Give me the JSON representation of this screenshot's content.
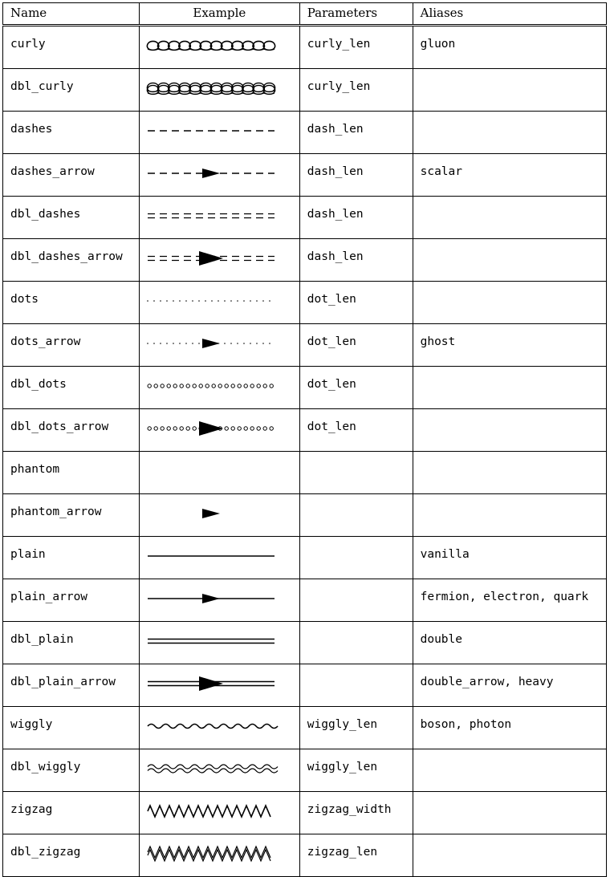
{
  "headers": {
    "name": "Name",
    "example": "Example",
    "parameters": "Parameters",
    "aliases": "Aliases"
  },
  "rows": [
    {
      "name": "curly",
      "style": "curly",
      "params": "curly_len",
      "aliases": "gluon"
    },
    {
      "name": "dbl_curly",
      "style": "dbl_curly",
      "params": "curly_len",
      "aliases": ""
    },
    {
      "name": "dashes",
      "style": "dashes",
      "params": "dash_len",
      "aliases": ""
    },
    {
      "name": "dashes_arrow",
      "style": "dashes_arrow",
      "params": "dash_len",
      "aliases": "scalar"
    },
    {
      "name": "dbl_dashes",
      "style": "dbl_dashes",
      "params": "dash_len",
      "aliases": ""
    },
    {
      "name": "dbl_dashes_arrow",
      "style": "dbl_dashes_arrow",
      "params": "dash_len",
      "aliases": ""
    },
    {
      "name": "dots",
      "style": "dots",
      "params": "dot_len",
      "aliases": ""
    },
    {
      "name": "dots_arrow",
      "style": "dots_arrow",
      "params": "dot_len",
      "aliases": "ghost"
    },
    {
      "name": "dbl_dots",
      "style": "dbl_dots",
      "params": "dot_len",
      "aliases": ""
    },
    {
      "name": "dbl_dots_arrow",
      "style": "dbl_dots_arrow",
      "params": "dot_len",
      "aliases": ""
    },
    {
      "name": "phantom",
      "style": "phantom",
      "params": "",
      "aliases": ""
    },
    {
      "name": "phantom_arrow",
      "style": "phantom_arrow",
      "params": "",
      "aliases": ""
    },
    {
      "name": "plain",
      "style": "plain",
      "params": "",
      "aliases": "vanilla"
    },
    {
      "name": "plain_arrow",
      "style": "plain_arrow",
      "params": "",
      "aliases": "fermion, electron, quark"
    },
    {
      "name": "dbl_plain",
      "style": "dbl_plain",
      "params": "",
      "aliases": "double"
    },
    {
      "name": "dbl_plain_arrow",
      "style": "dbl_plain_arrow",
      "params": "",
      "aliases": "double_arrow, heavy"
    },
    {
      "name": "wiggly",
      "style": "wiggly",
      "params": "wiggly_len",
      "aliases": "boson, photon"
    },
    {
      "name": "dbl_wiggly",
      "style": "dbl_wiggly",
      "params": "wiggly_len",
      "aliases": ""
    },
    {
      "name": "zigzag",
      "style": "zigzag",
      "params": "zigzag_width",
      "aliases": ""
    },
    {
      "name": "dbl_zigzag",
      "style": "dbl_zigzag",
      "params": "zigzag_len",
      "aliases": ""
    }
  ]
}
